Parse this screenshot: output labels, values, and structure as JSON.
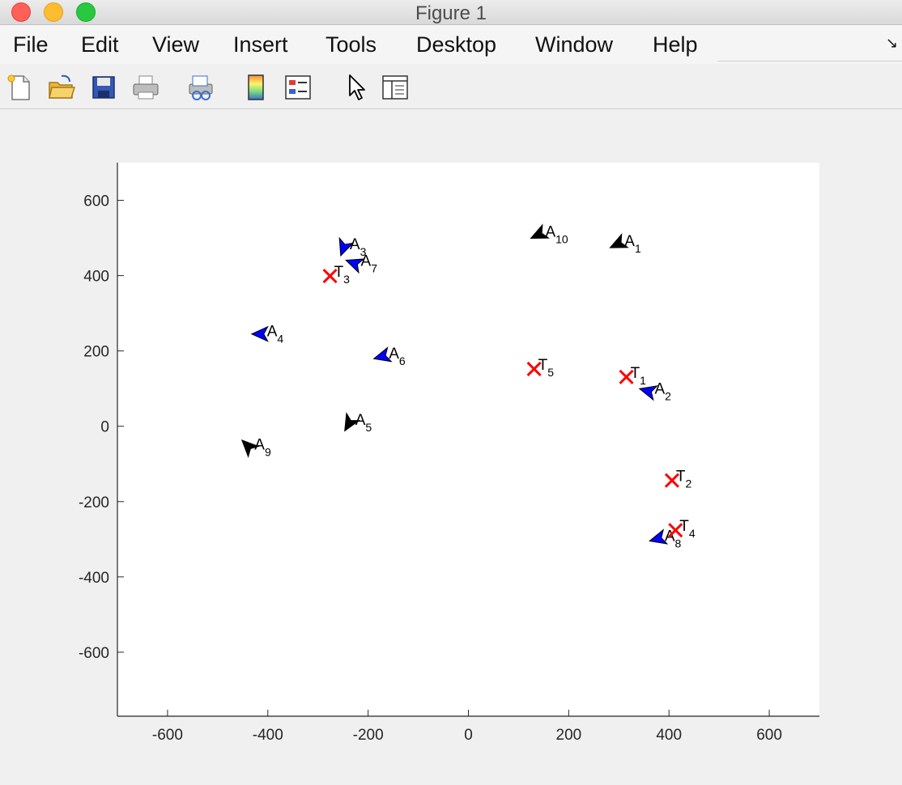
{
  "window": {
    "title": "Figure 1"
  },
  "menu": [
    "File",
    "Edit",
    "View",
    "Insert",
    "Tools",
    "Desktop",
    "Window",
    "Help"
  ],
  "toolbar": [
    "new-figure-icon",
    "open-file-icon",
    "save-icon",
    "print-icon",
    "print-preview-icon",
    "colorbar-icon",
    "legend-icon",
    "pointer-icon",
    "property-editor-icon"
  ],
  "colors": {
    "agent_blue": "#0000ff",
    "agent_black": "#000000",
    "target_red": "#ff0000"
  },
  "chart_data": {
    "type": "scatter",
    "xlim": [
      -700,
      700
    ],
    "ylim": [
      -770,
      700
    ],
    "xticks": [
      -600,
      -400,
      -200,
      0,
      200,
      400,
      600
    ],
    "yticks": [
      -600,
      -400,
      -200,
      0,
      200,
      400,
      600
    ],
    "grid": false,
    "agents": [
      {
        "label": "A",
        "sub": "1",
        "x": 300,
        "y": 485,
        "heading": 205,
        "color": "black"
      },
      {
        "label": "A",
        "sub": "2",
        "x": 360,
        "y": 93,
        "heading": 165,
        "color": "blue"
      },
      {
        "label": "A",
        "sub": "3",
        "x": -248,
        "y": 477,
        "heading": 250,
        "color": "blue"
      },
      {
        "label": "A",
        "sub": "4",
        "x": -413,
        "y": 245,
        "heading": 180,
        "color": "blue"
      },
      {
        "label": "A",
        "sub": "5",
        "x": -237,
        "y": 10,
        "heading": 240,
        "color": "black"
      },
      {
        "label": "A",
        "sub": "6",
        "x": -170,
        "y": 186,
        "heading": 195,
        "color": "blue"
      },
      {
        "label": "A",
        "sub": "7",
        "x": -226,
        "y": 432,
        "heading": 160,
        "color": "blue"
      },
      {
        "label": "A",
        "sub": "8",
        "x": 380,
        "y": -298,
        "heading": 195,
        "color": "blue"
      },
      {
        "label": "A",
        "sub": "9",
        "x": -438,
        "y": -55,
        "heading": 135,
        "color": "black"
      },
      {
        "label": "A",
        "sub": "10",
        "x": 142,
        "y": 510,
        "heading": 205,
        "color": "black"
      }
    ],
    "targets": [
      {
        "label": "T",
        "sub": "1",
        "x": 315,
        "y": 131
      },
      {
        "label": "T",
        "sub": "2",
        "x": 406,
        "y": -144
      },
      {
        "label": "T",
        "sub": "3",
        "x": -276,
        "y": 399
      },
      {
        "label": "T",
        "sub": "4",
        "x": 413,
        "y": -276
      },
      {
        "label": "T",
        "sub": "5",
        "x": 131,
        "y": 152
      }
    ]
  }
}
